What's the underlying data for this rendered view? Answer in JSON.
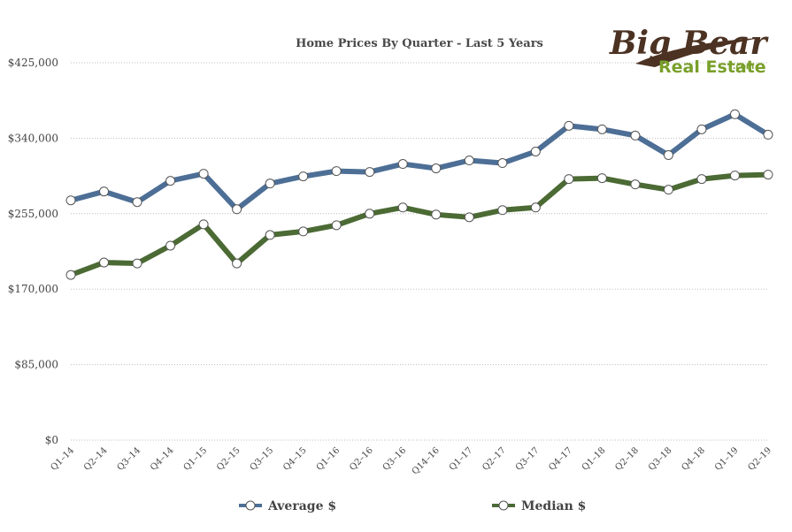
{
  "chart_data": {
    "type": "line",
    "title": "Home Prices By Quarter - Last 5 Years",
    "categories": [
      "Q1–14",
      "Q2–14",
      "Q3–14",
      "Q4–14",
      "Q1–15",
      "Q2–15",
      "Q3–15",
      "Q4–15",
      "Q1–16",
      "Q2–16",
      "Q3–16",
      "Q14–16",
      "Q1–17",
      "Q2–17",
      "Q3–17",
      "Q4–17",
      "Q1–18",
      "Q2–18",
      "Q3–18",
      "Q4–18",
      "Q1–19",
      "Q2–19"
    ],
    "yticks": [
      "$0",
      "$85,000",
      "$170,000",
      "$255,000",
      "$340,000",
      "$425,000"
    ],
    "ylim": [
      0,
      425000
    ],
    "ytick_values": [
      0,
      85000,
      170000,
      255000,
      340000,
      425000
    ],
    "grid": true,
    "legend_position": "bottom",
    "series": [
      {
        "name": "Average $",
        "color": "#4d6f96",
        "values": [
          270000,
          280000,
          268000,
          292000,
          300000,
          260000,
          289000,
          297000,
          303000,
          302000,
          311000,
          306000,
          315000,
          312000,
          325000,
          354000,
          350000,
          343000,
          321000,
          350000,
          367000,
          344000
        ]
      },
      {
        "name": "Median $",
        "color": "#4b6a34",
        "values": [
          186000,
          200000,
          199000,
          219000,
          243000,
          199000,
          231000,
          235000,
          242000,
          255000,
          262000,
          254000,
          251000,
          259000,
          262000,
          294000,
          295000,
          288000,
          282000,
          294000,
          298000,
          299000
        ]
      }
    ]
  },
  "branding": {
    "logo_line1": "Big Bear",
    "logo_line2": "Real Estate",
    "logo_suffix": ".com"
  }
}
